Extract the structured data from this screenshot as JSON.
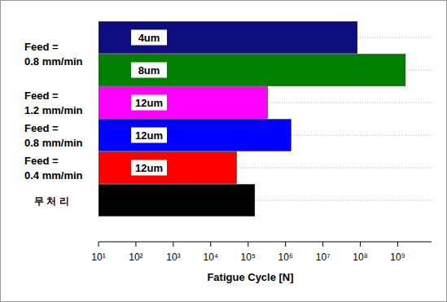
{
  "chart_data": {
    "type": "bar",
    "orientation": "horizontal",
    "log": "x",
    "grid": true,
    "x_label": "Fatigue Cycle [N]",
    "categories": [
      "4um",
      "8um",
      "12um",
      "12um",
      "12um",
      null
    ],
    "values": [
      83000000,
      1600000000,
      330000,
      1400000,
      49000,
      150000
    ],
    "colors": [
      "#0d0d80",
      "#008000",
      "#ff00ff",
      "#0000ff",
      "#ff0000",
      "#000000"
    ],
    "groups": [
      {
        "lines": [
          "Feed =",
          "0.8 mm/min"
        ],
        "count": 2
      },
      {
        "lines": [
          "Feed =",
          "1.2 mm/min"
        ],
        "count": 1
      },
      {
        "lines": [
          "Feed =",
          "0.8 mm/min"
        ],
        "count": 1
      },
      {
        "lines": [
          "Feed =",
          "0.4 mm/min"
        ],
        "count": 1
      },
      {
        "lines": [
          "무 처 리"
        ],
        "count": 1
      }
    ],
    "xlim": [
      10,
      8000000000
    ],
    "xticks": [
      {
        "value": 10,
        "label": "10¹"
      },
      {
        "value": 100,
        "label": "10²"
      },
      {
        "value": 1000,
        "label": "10³"
      },
      {
        "value": 10000,
        "label": "10⁴"
      },
      {
        "value": 100000,
        "label": "10⁵"
      },
      {
        "value": 1000000,
        "label": "10⁶"
      },
      {
        "value": 10000000,
        "label": "10⁷"
      },
      {
        "value": 100000000,
        "label": "10⁸"
      },
      {
        "value": 1000000000,
        "label": "10⁹"
      }
    ]
  }
}
